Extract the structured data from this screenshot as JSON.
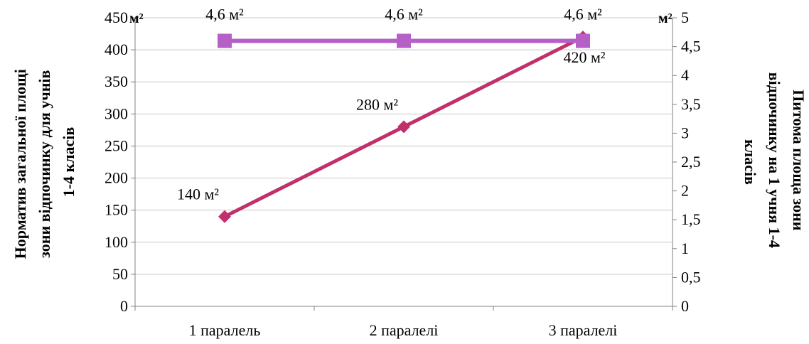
{
  "chart_data": {
    "type": "line",
    "categories": [
      "1 паралель",
      "2 паралелі",
      "3 паралелі"
    ],
    "series": [
      {
        "axis": "left",
        "values": [
          140,
          280,
          420
        ],
        "labels": [
          "140 м²",
          "280 м²",
          "420 м²"
        ],
        "color": "#c0306a",
        "marker": "diamond"
      },
      {
        "axis": "right",
        "values": [
          4.6,
          4.6,
          4.6
        ],
        "labels": [
          "4,6 м²",
          "4,6 м²",
          "4,6 м²"
        ],
        "color": "#b65fc7",
        "marker": "square"
      }
    ],
    "y_left": {
      "label_lines": [
        "Норматив загальної площі",
        "зони відпочинку для учнів",
        "1-4 класів"
      ],
      "unit": "м²",
      "ylim": [
        0,
        450
      ],
      "ticks": [
        "0",
        "50",
        "100",
        "150",
        "200",
        "250",
        "300",
        "350",
        "400",
        "450"
      ]
    },
    "y_right": {
      "label_lines": [
        "Питома площа зони",
        "відпочинку на 1 учня 1-4",
        "класів"
      ],
      "unit": "м²",
      "ylim": [
        0,
        5
      ],
      "ticks": [
        "0",
        "0,5",
        "1",
        "1,5",
        "2",
        "2,5",
        "3",
        "3,5",
        "4",
        "4,5",
        "5"
      ]
    },
    "grid": true
  }
}
